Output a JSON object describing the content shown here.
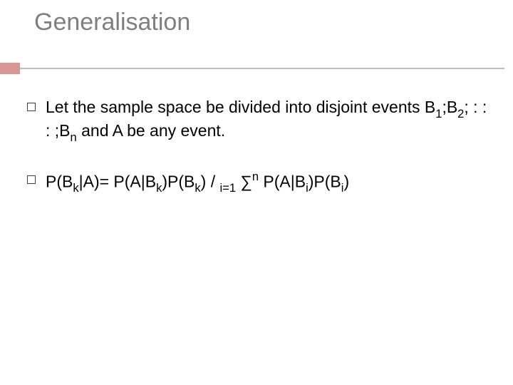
{
  "slide": {
    "title": "Generalisation",
    "title_color": "#7f7f7f",
    "title_fontsize": 34,
    "accent_color": "#d99693",
    "divider_color": "#bfbfbf",
    "background_color": "#ffffff",
    "body_fontsize": 23,
    "body_color": "#000000",
    "bullet_border_color": "#3f3f3f",
    "bullets": [
      {
        "text_parts": {
          "p1": "Let the sample space be divided into disjoint events B",
          "s1": "1",
          "p2": ";B",
          "s2": "2",
          "p3": "; : : : ;B",
          "s3": "n",
          "p4": " and A be any event."
        }
      },
      {
        "formula": {
          "f1": "P(B",
          "sk1": "k",
          "f2": "|A)= P(A|B",
          "sk2": "k",
          "f3": ")P(B",
          "sk3": "k",
          "f4": ") / ",
          "si": "i=1",
          "sig": " ∑",
          "sn": "n",
          "f5": " P(A|B",
          "si2": "i",
          "f6": ")P(B",
          "si3": "i",
          "f7": ")"
        }
      }
    ]
  }
}
